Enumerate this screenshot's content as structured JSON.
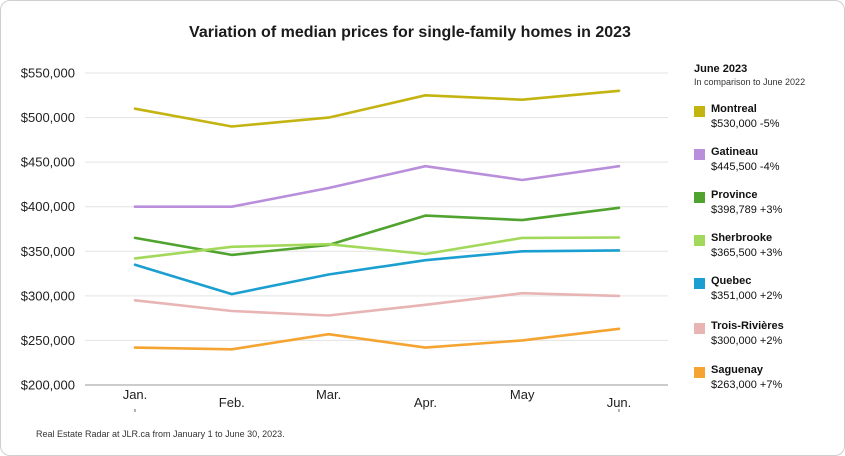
{
  "chart_data": {
    "type": "line",
    "title": "Variation of median prices for single-family homes in 2023",
    "xlabel": "",
    "ylabel": "",
    "categories": [
      "Jan.",
      "Feb.",
      "Mar.",
      "Apr.",
      "May",
      "Jun."
    ],
    "ylim": [
      200000,
      550000
    ],
    "yticks": [
      200000,
      250000,
      300000,
      350000,
      400000,
      450000,
      500000,
      550000
    ],
    "ytick_labels": [
      "$200,000",
      "$250,000",
      "$300,000",
      "$350,000",
      "$400,000",
      "$450,000",
      "$500,000",
      "$550,000"
    ],
    "grid": "horizontal",
    "legend_position": "right",
    "series": [
      {
        "name": "Montreal",
        "color": "#c4b412",
        "values": [
          510000,
          490000,
          500000,
          525000,
          520000,
          530000
        ]
      },
      {
        "name": "Gatineau",
        "color": "#b98fdb",
        "values": [
          400000,
          400000,
          421000,
          445500,
          430000,
          445500
        ]
      },
      {
        "name": "Province",
        "color": "#4fa32e",
        "values": [
          365000,
          346000,
          357000,
          390000,
          385000,
          398789
        ]
      },
      {
        "name": "Sherbrooke",
        "color": "#a3d95a",
        "values": [
          342000,
          355000,
          358000,
          347000,
          365000,
          365500
        ]
      },
      {
        "name": "Quebec",
        "color": "#1b9fd0",
        "values": [
          335000,
          302000,
          324000,
          340000,
          350000,
          351000
        ]
      },
      {
        "name": "Trois-Rivières",
        "color": "#e8b4b4",
        "values": [
          295000,
          283000,
          278000,
          290000,
          303000,
          300000
        ]
      },
      {
        "name": "Saguenay",
        "color": "#f5a431",
        "values": [
          242000,
          240000,
          257000,
          242000,
          250000,
          263000
        ]
      }
    ]
  },
  "legend": {
    "heading": "June 2023",
    "subheading": "In comparison to June 2022",
    "items": [
      {
        "name": "Montreal",
        "value": "$530,000 -5%",
        "color": "#c4b412"
      },
      {
        "name": "Gatineau",
        "value": "$445,500 -4%",
        "color": "#b98fdb"
      },
      {
        "name": "Province",
        "value": "$398,789 +3%",
        "color": "#4fa32e"
      },
      {
        "name": "Sherbrooke",
        "value": "$365,500 +3%",
        "color": "#a3d95a"
      },
      {
        "name": "Quebec",
        "value": "$351,000 +2%",
        "color": "#1b9fd0"
      },
      {
        "name": "Trois-Rivières",
        "value": "$300,000  +2%",
        "color": "#e8b4b4"
      },
      {
        "name": "Saguenay",
        "value": "$263,000 +7%",
        "color": "#f5a431"
      }
    ]
  },
  "footnote": "Real Estate Radar at JLR.ca from January 1 to June 30, 2023."
}
